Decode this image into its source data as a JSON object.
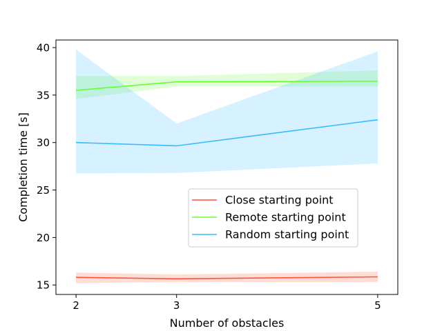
{
  "chart_data": {
    "type": "line",
    "title": "",
    "xlabel": "Number of obstacles",
    "ylabel": "Completion time [s]",
    "x": [
      2,
      3,
      5
    ],
    "x_tick_labels": [
      "2",
      "3",
      "5"
    ],
    "ylim": [
      14,
      40.8
    ],
    "y_ticks": [
      15,
      20,
      25,
      30,
      35,
      40
    ],
    "grid": false,
    "legend_placement": "center-right",
    "series": [
      {
        "name": "Close starting point",
        "color": "#ff5533",
        "values": [
          15.8,
          15.65,
          15.85
        ],
        "band_lower": [
          15.2,
          15.3,
          15.3
        ],
        "band_upper": [
          16.3,
          16.1,
          16.4
        ]
      },
      {
        "name": "Remote starting point",
        "color": "#66ff33",
        "values": [
          35.5,
          36.4,
          36.45
        ],
        "band_lower": [
          34.6,
          35.9,
          35.9
        ],
        "band_upper": [
          37.0,
          37.0,
          37.6
        ]
      },
      {
        "name": "Random starting point",
        "color": "#33bbff",
        "values": [
          30.0,
          29.65,
          32.4
        ],
        "band_lower": [
          26.75,
          26.8,
          27.8
        ],
        "band_upper": [
          39.8,
          32.0,
          39.6
        ]
      }
    ]
  }
}
